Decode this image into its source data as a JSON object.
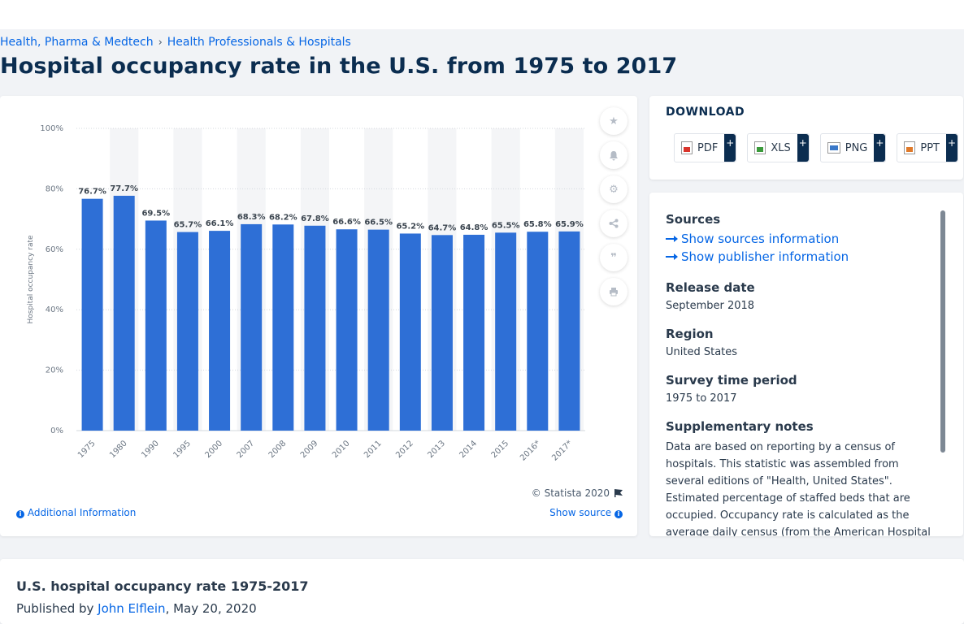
{
  "breadcrumb": {
    "items": [
      "Health, Pharma & Medtech",
      "Health Professionals & Hospitals"
    ],
    "separator": "›"
  },
  "page_title": "Hospital occupancy rate in the U.S. from 1975 to 2017",
  "chart_data": {
    "type": "bar",
    "categories": [
      "1975",
      "1980",
      "1990",
      "1995",
      "2000",
      "2007",
      "2008",
      "2009",
      "2010",
      "2011",
      "2012",
      "2013",
      "2014",
      "2015",
      "2016*",
      "2017*"
    ],
    "values": [
      76.7,
      77.7,
      69.5,
      65.7,
      66.1,
      68.3,
      68.2,
      67.8,
      66.6,
      66.5,
      65.2,
      64.7,
      64.8,
      65.5,
      65.8,
      65.9
    ],
    "data_labels": [
      "76.7%",
      "77.7%",
      "69.5%",
      "65.7%",
      "66.1%",
      "68.3%",
      "68.2%",
      "67.8%",
      "66.6%",
      "66.5%",
      "65.2%",
      "64.7%",
      "64.8%",
      "65.5%",
      "65.8%",
      "65.9%"
    ],
    "ylabel": "Hospital occupancy rate",
    "xlabel": "",
    "ylim": [
      0,
      100
    ],
    "yticks": [
      "0%",
      "20%",
      "40%",
      "60%",
      "80%",
      "100%"
    ],
    "grid": true,
    "bar_color": "#2e6fd6",
    "band_color": "#f4f5f7"
  },
  "chart_footer": {
    "copyright": "© Statista 2020",
    "additional_info": "Additional Information",
    "show_source": "Show source"
  },
  "side_icons": [
    "star-icon",
    "bell-icon",
    "gear-icon",
    "share-icon",
    "quote-icon",
    "print-icon"
  ],
  "download": {
    "title": "DOWNLOAD",
    "formats": [
      {
        "label": "PDF",
        "icon": "pdf-file-icon"
      },
      {
        "label": "XLS",
        "icon": "xls-file-icon"
      },
      {
        "label": "PNG",
        "icon": "png-file-icon"
      },
      {
        "label": "PPT",
        "icon": "ppt-file-icon"
      }
    ],
    "plus": "+"
  },
  "info": {
    "sources_heading": "Sources",
    "show_sources": "Show sources information",
    "show_publisher": "Show publisher information",
    "release_heading": "Release date",
    "release_value": "September 2018",
    "region_heading": "Region",
    "region_value": "United States",
    "survey_heading": "Survey time period",
    "survey_value": "1975 to 2017",
    "supp_heading": "Supplementary notes",
    "supp_text_1": "Data are based on reporting by a census of hospitals. This statistic was assembled from several editions of \"Health, United States\".",
    "supp_text_2": "Estimated percentage of staffed beds that are occupied. Occupancy rate is calculated as the average daily census (from the American Hospital"
  },
  "bottom": {
    "title": "U.S. hospital occupancy rate 1975-2017",
    "published_prefix": "Published by",
    "author": "John Elflein",
    "date_suffix": ", May 20, 2020"
  }
}
